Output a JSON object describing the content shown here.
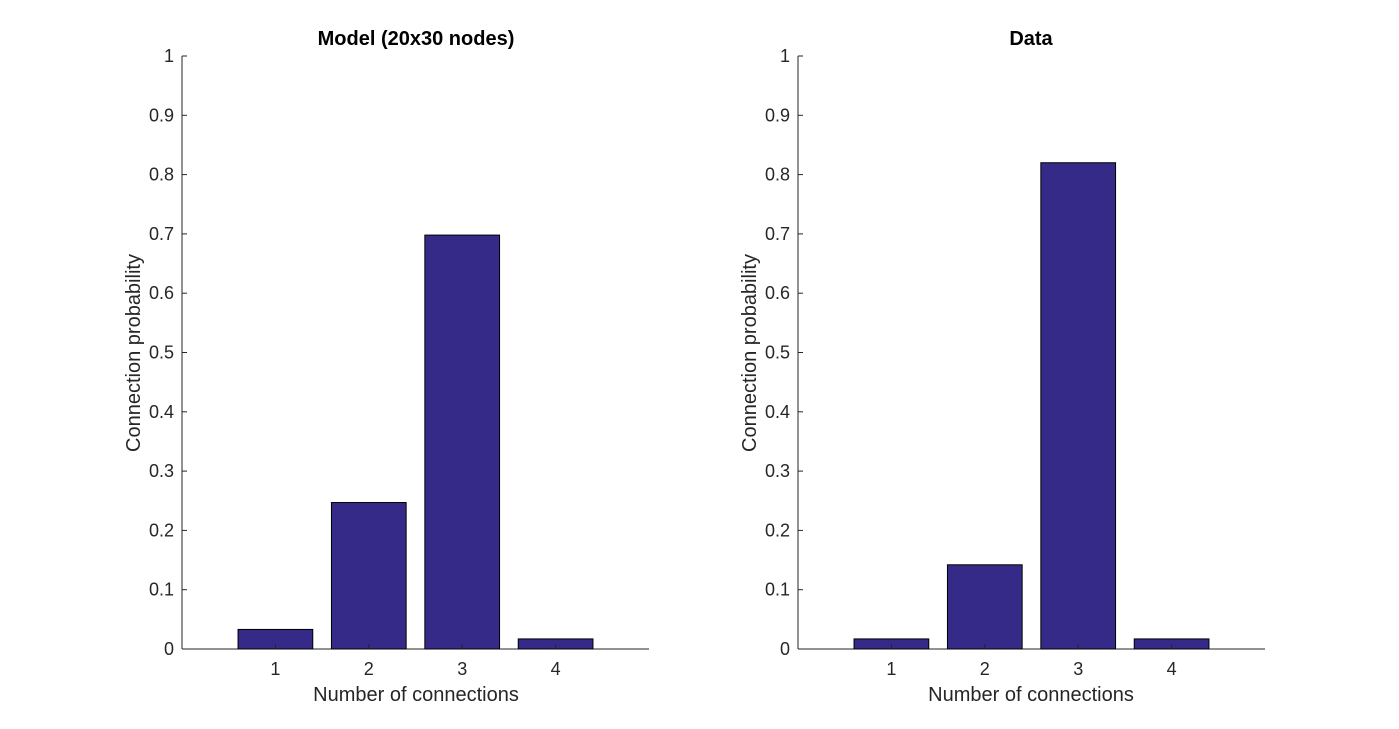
{
  "chart_data": [
    {
      "type": "bar",
      "title": "Model (20x30 nodes)",
      "xlabel": "Number of connections",
      "ylabel": "Connection probability",
      "categories": [
        "1",
        "2",
        "3",
        "4"
      ],
      "values": [
        0.033,
        0.247,
        0.698,
        0.017
      ],
      "ylim": [
        0,
        1
      ],
      "yticks": [
        "0",
        "0.1",
        "0.2",
        "0.3",
        "0.4",
        "0.5",
        "0.6",
        "0.7",
        "0.8",
        "0.9",
        "1"
      ],
      "bar_color": "#352a87",
      "grid": false
    },
    {
      "type": "bar",
      "title": "Data",
      "xlabel": "Number of connections",
      "ylabel": "Connection probability",
      "categories": [
        "1",
        "2",
        "3",
        "4"
      ],
      "values": [
        0.017,
        0.142,
        0.82,
        0.017
      ],
      "ylim": [
        0,
        1
      ],
      "yticks": [
        "0",
        "0.1",
        "0.2",
        "0.3",
        "0.4",
        "0.5",
        "0.6",
        "0.7",
        "0.8",
        "0.9",
        "1"
      ],
      "bar_color": "#352a87",
      "grid": false
    }
  ]
}
